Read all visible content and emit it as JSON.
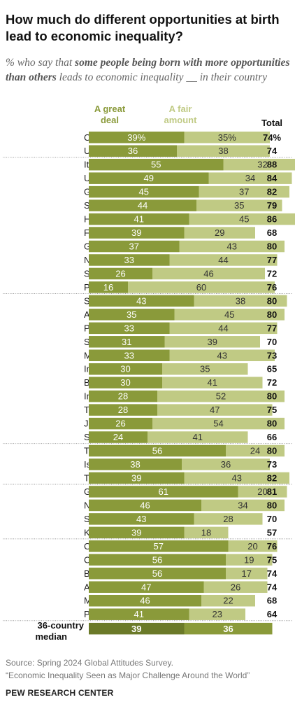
{
  "header": {
    "title": "How much do different opportunities at birth lead to economic inequality?",
    "subtitle_pre": "% who say that ",
    "subtitle_bold": "some people being born with more opportunities than others",
    "subtitle_post": " leads to economic inequality __ in their country"
  },
  "chart_data": {
    "type": "bar",
    "stacked": true,
    "series": [
      {
        "name": "A great deal",
        "label_lines": [
          "A great",
          "deal"
        ],
        "color": "#8a9a3a"
      },
      {
        "name": "A fair amount",
        "label_lines": [
          "A fair",
          "amount"
        ],
        "color": "#c0ca84"
      }
    ],
    "median_colors": [
      "#6b7a29",
      "#8a9a3a"
    ],
    "total_header": "Total",
    "xlim": [
      0,
      100
    ],
    "groups": [
      [
        {
          "country": "Canada",
          "great": 39,
          "fair": 35,
          "total": 74,
          "great_label": "39%",
          "fair_label": "35%",
          "total_label": "74%"
        },
        {
          "country": "U.S.",
          "great": 36,
          "fair": 38,
          "total": 74
        }
      ],
      [
        {
          "country": "Italy",
          "great": 55,
          "fair": 32,
          "total": 88
        },
        {
          "country": "UK",
          "great": 49,
          "fair": 34,
          "total": 84
        },
        {
          "country": "Greece",
          "great": 45,
          "fair": 37,
          "total": 82
        },
        {
          "country": "Spain",
          "great": 44,
          "fair": 35,
          "total": 79
        },
        {
          "country": "Hungary",
          "great": 41,
          "fair": 45,
          "total": 86
        },
        {
          "country": "France",
          "great": 39,
          "fair": 29,
          "total": 68
        },
        {
          "country": "Germany",
          "great": 37,
          "fair": 43,
          "total": 80
        },
        {
          "country": "Netherlands",
          "great": 33,
          "fair": 44,
          "total": 77
        },
        {
          "country": "Sweden",
          "great": 26,
          "fair": 46,
          "total": 72
        },
        {
          "country": "Poland",
          "great": 16,
          "fair": 60,
          "total": 76
        }
      ],
      [
        {
          "country": "South Korea",
          "great": 43,
          "fair": 38,
          "total": 80
        },
        {
          "country": "Australia",
          "great": 35,
          "fair": 45,
          "total": 80
        },
        {
          "country": "Philippines",
          "great": 33,
          "fair": 44,
          "total": 77
        },
        {
          "country": "Singapore",
          "great": 31,
          "fair": 39,
          "total": 70
        },
        {
          "country": "Malaysia",
          "great": 33,
          "fair": 43,
          "total": 73
        },
        {
          "country": "India",
          "great": 30,
          "fair": 35,
          "total": 65
        },
        {
          "country": "Bangladesh",
          "great": 30,
          "fair": 41,
          "total": 72
        },
        {
          "country": "Indonesia",
          "great": 28,
          "fair": 52,
          "total": 80
        },
        {
          "country": "Thailand",
          "great": 28,
          "fair": 47,
          "total": 75
        },
        {
          "country": "Japan",
          "great": 26,
          "fair": 54,
          "total": 80
        },
        {
          "country": "Sri Lanka",
          "great": 24,
          "fair": 41,
          "total": 66
        }
      ],
      [
        {
          "country": "Tunisia",
          "great": 56,
          "fair": 24,
          "total": 80
        },
        {
          "country": "Israel",
          "great": 38,
          "fair": 36,
          "total": 73
        },
        {
          "country": "Turkey",
          "great": 39,
          "fair": 43,
          "total": 82
        }
      ],
      [
        {
          "country": "Ghana",
          "great": 61,
          "fair": 20,
          "total": 81
        },
        {
          "country": "Nigeria",
          "great": 46,
          "fair": 34,
          "total": 80
        },
        {
          "country": "South Africa",
          "great": 43,
          "fair": 28,
          "total": 70
        },
        {
          "country": "Kenya",
          "great": 39,
          "fair": 18,
          "total": 57
        }
      ],
      [
        {
          "country": "Chile",
          "great": 57,
          "fair": 20,
          "total": 76
        },
        {
          "country": "Colombia",
          "great": 56,
          "fair": 19,
          "total": 75
        },
        {
          "country": "Brazil",
          "great": 56,
          "fair": 17,
          "total": 74
        },
        {
          "country": "Argentina",
          "great": 47,
          "fair": 26,
          "total": 74
        },
        {
          "country": "Mexico",
          "great": 46,
          "fair": 22,
          "total": 68
        },
        {
          "country": "Peru",
          "great": 41,
          "fair": 23,
          "total": 64
        }
      ]
    ],
    "median": {
      "label_lines": [
        "36-country",
        "median"
      ],
      "great": 39,
      "fair": 36
    }
  },
  "footer": {
    "source_line1": "Source: Spring 2024 Global Attitudes Survey.",
    "source_line2": "“Economic Inequality Seen as Major Challenge Around the World”",
    "org": "PEW RESEARCH CENTER"
  }
}
